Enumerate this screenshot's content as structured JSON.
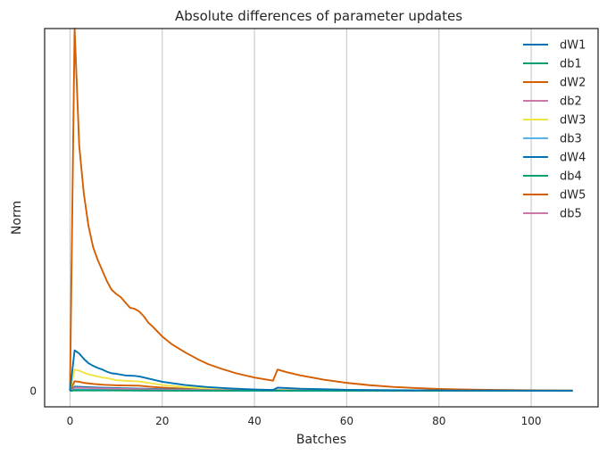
{
  "chart_data": {
    "type": "line",
    "title": "Absolute differences of parameter updates",
    "xlabel": "Batches",
    "ylabel": "Norm",
    "xlim": [
      -5.5,
      114.5
    ],
    "ylim": [
      -0.15,
      3.4
    ],
    "x_ticks": [
      0,
      20,
      40,
      60,
      80,
      100
    ],
    "y_ticks": [
      0
    ],
    "x_grid": true,
    "y_grid": false,
    "legend_position": "top-right",
    "series": [
      {
        "name": "dW1",
        "color": "#0072b2",
        "points": [
          [
            0,
            0
          ],
          [
            1,
            0.38
          ],
          [
            2,
            0.35
          ],
          [
            3,
            0.3
          ],
          [
            4,
            0.26
          ],
          [
            5,
            0.235
          ],
          [
            6,
            0.215
          ],
          [
            7,
            0.2
          ],
          [
            8,
            0.18
          ],
          [
            9,
            0.165
          ],
          [
            10,
            0.16
          ],
          [
            12,
            0.145
          ],
          [
            14,
            0.14
          ],
          [
            15,
            0.135
          ],
          [
            17,
            0.115
          ],
          [
            20,
            0.085
          ],
          [
            25,
            0.055
          ],
          [
            30,
            0.035
          ],
          [
            35,
            0.022
          ],
          [
            40,
            0.013
          ],
          [
            44,
            0.008
          ],
          [
            45,
            0.03
          ],
          [
            50,
            0.02
          ],
          [
            60,
            0.01
          ],
          [
            70,
            0.006
          ],
          [
            80,
            0.004
          ],
          [
            90,
            0.003
          ],
          [
            100,
            0.002
          ],
          [
            109,
            0.002
          ]
        ]
      },
      {
        "name": "db1",
        "color": "#009e73",
        "points": [
          [
            0,
            0
          ],
          [
            1,
            0.006
          ],
          [
            10,
            0.004
          ],
          [
            20,
            0.003
          ],
          [
            40,
            0.002
          ],
          [
            60,
            0.001
          ],
          [
            109,
            0.001
          ]
        ]
      },
      {
        "name": "dW2",
        "color": "#d55e00",
        "points": [
          [
            0,
            0
          ],
          [
            1,
            3.4
          ],
          [
            2,
            2.3
          ],
          [
            3,
            1.85
          ],
          [
            4,
            1.55
          ],
          [
            5,
            1.35
          ],
          [
            6,
            1.23
          ],
          [
            7,
            1.13
          ],
          [
            8,
            1.03
          ],
          [
            9,
            0.95
          ],
          [
            10,
            0.91
          ],
          [
            11,
            0.88
          ],
          [
            12,
            0.83
          ],
          [
            13,
            0.78
          ],
          [
            14,
            0.77
          ],
          [
            15,
            0.745
          ],
          [
            16,
            0.7
          ],
          [
            17,
            0.64
          ],
          [
            18,
            0.6
          ],
          [
            20,
            0.51
          ],
          [
            22,
            0.44
          ],
          [
            25,
            0.36
          ],
          [
            28,
            0.29
          ],
          [
            30,
            0.25
          ],
          [
            33,
            0.205
          ],
          [
            36,
            0.165
          ],
          [
            40,
            0.125
          ],
          [
            44,
            0.095
          ],
          [
            45,
            0.2
          ],
          [
            47,
            0.175
          ],
          [
            50,
            0.145
          ],
          [
            55,
            0.105
          ],
          [
            60,
            0.075
          ],
          [
            65,
            0.053
          ],
          [
            70,
            0.037
          ],
          [
            75,
            0.026
          ],
          [
            80,
            0.018
          ],
          [
            90,
            0.009
          ],
          [
            100,
            0.005
          ],
          [
            109,
            0.003
          ]
        ]
      },
      {
        "name": "db2",
        "color": "#cc79a7",
        "points": [
          [
            0,
            0
          ],
          [
            1,
            0.03
          ],
          [
            5,
            0.025
          ],
          [
            10,
            0.02
          ],
          [
            20,
            0.012
          ],
          [
            40,
            0.005
          ],
          [
            60,
            0.003
          ],
          [
            109,
            0.001
          ]
        ]
      },
      {
        "name": "dW3",
        "color": "#f0e442",
        "points": [
          [
            0,
            0
          ],
          [
            1,
            0.2
          ],
          [
            2,
            0.19
          ],
          [
            3,
            0.17
          ],
          [
            4,
            0.155
          ],
          [
            5,
            0.145
          ],
          [
            6,
            0.135
          ],
          [
            7,
            0.125
          ],
          [
            8,
            0.12
          ],
          [
            9,
            0.11
          ],
          [
            10,
            0.1
          ],
          [
            12,
            0.095
          ],
          [
            14,
            0.09
          ],
          [
            15,
            0.088
          ],
          [
            17,
            0.075
          ],
          [
            20,
            0.055
          ],
          [
            25,
            0.035
          ],
          [
            30,
            0.022
          ],
          [
            40,
            0.01
          ],
          [
            45,
            0.008
          ],
          [
            50,
            0.006
          ],
          [
            60,
            0.004
          ],
          [
            80,
            0.002
          ],
          [
            109,
            0.001
          ]
        ]
      },
      {
        "name": "db3",
        "color": "#56b4e9",
        "points": [
          [
            0,
            0
          ],
          [
            1,
            0.012
          ],
          [
            10,
            0.008
          ],
          [
            20,
            0.005
          ],
          [
            40,
            0.002
          ],
          [
            60,
            0.001
          ],
          [
            109,
            0.001
          ]
        ]
      },
      {
        "name": "dW4",
        "color": "#0072b2",
        "points": [
          [
            0,
            0
          ],
          [
            1,
            0.04
          ],
          [
            5,
            0.032
          ],
          [
            10,
            0.026
          ],
          [
            20,
            0.016
          ],
          [
            30,
            0.01
          ],
          [
            45,
            0.006
          ],
          [
            60,
            0.004
          ],
          [
            109,
            0.001
          ]
        ]
      },
      {
        "name": "db4",
        "color": "#009e73",
        "points": [
          [
            0,
            0
          ],
          [
            1,
            0.004
          ],
          [
            20,
            0.002
          ],
          [
            60,
            0.001
          ],
          [
            109,
            0.001
          ]
        ]
      },
      {
        "name": "dW5",
        "color": "#d55e00",
        "points": [
          [
            0,
            0
          ],
          [
            1,
            0.09
          ],
          [
            2,
            0.085
          ],
          [
            3,
            0.075
          ],
          [
            5,
            0.065
          ],
          [
            7,
            0.058
          ],
          [
            10,
            0.052
          ],
          [
            12,
            0.05
          ],
          [
            15,
            0.048
          ],
          [
            17,
            0.04
          ],
          [
            20,
            0.03
          ],
          [
            25,
            0.02
          ],
          [
            30,
            0.013
          ],
          [
            40,
            0.007
          ],
          [
            45,
            0.006
          ],
          [
            50,
            0.005
          ],
          [
            60,
            0.003
          ],
          [
            80,
            0.002
          ],
          [
            109,
            0.001
          ]
        ]
      },
      {
        "name": "db5",
        "color": "#cc79a7",
        "points": [
          [
            0,
            0
          ],
          [
            1,
            0.006
          ],
          [
            20,
            0.003
          ],
          [
            60,
            0.001
          ],
          [
            109,
            0.001
          ]
        ]
      }
    ]
  }
}
